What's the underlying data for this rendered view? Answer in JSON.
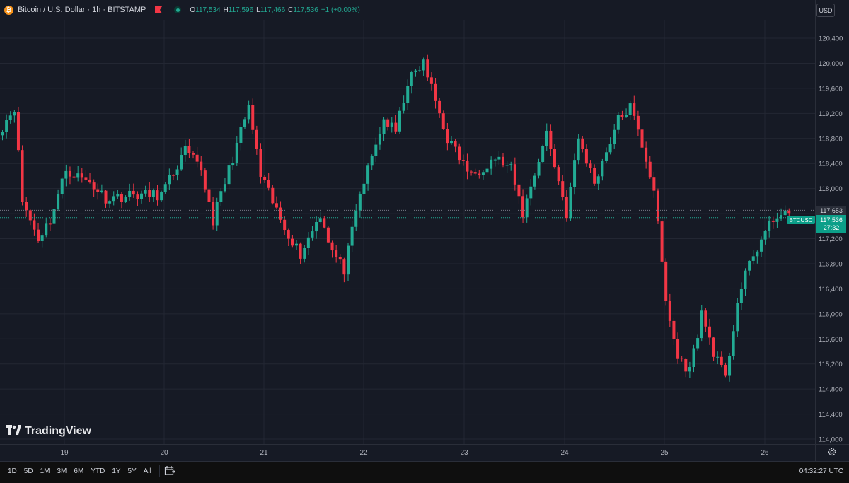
{
  "header": {
    "symbol_title": "Bitcoin / U.S. Dollar · 1h · BITSTAMP",
    "ohlc": [
      {
        "label": "O",
        "value": "117,534"
      },
      {
        "label": "H",
        "value": "117,596"
      },
      {
        "label": "L",
        "value": "117,466"
      },
      {
        "label": "C",
        "value": "117,536"
      },
      {
        "label": "",
        "value": "+1 (+0.00%)"
      }
    ]
  },
  "currency_label": "USD",
  "price_tags": {
    "prev_close": "117,653",
    "symbol": "BTCUSD",
    "last_price": "117,536",
    "countdown": "27:32"
  },
  "logo_text": "TradingView",
  "bottom_bar": {
    "ranges": [
      "1D",
      "5D",
      "1M",
      "3M",
      "6M",
      "YTD",
      "1Y",
      "5Y",
      "All"
    ],
    "clock": "04:32:27 UTC"
  },
  "colors": {
    "up": "#22ab94",
    "down": "#f23645",
    "background": "#161a25",
    "grid": "#232733"
  },
  "chart_data": {
    "type": "candlestick",
    "title": "Bitcoin / U.S. Dollar · 1h · BITSTAMP",
    "ylim": [
      114000,
      120600
    ],
    "y_ticks": [
      120400,
      120000,
      119600,
      119200,
      118800,
      118400,
      118000,
      117600,
      117200,
      116800,
      116400,
      116000,
      115600,
      115200,
      114800,
      114400,
      114000
    ],
    "y_tick_labels": [
      "120,400",
      "120,000",
      "119,600",
      "119,200",
      "118,800",
      "118,400",
      "118,000",
      "117,600",
      "117,200",
      "116,800",
      "116,400",
      "116,000",
      "115,600",
      "115,200",
      "114,800",
      "114,400",
      "114,000"
    ],
    "x_labels": [
      "19",
      "20",
      "21",
      "22",
      "23",
      "24",
      "25",
      "26"
    ],
    "current_price": 117536,
    "prev_close": 117653,
    "waypoints": [
      [
        0,
        119000
      ],
      [
        3,
        119300
      ],
      [
        5,
        117800
      ],
      [
        9,
        117200
      ],
      [
        12,
        117500
      ],
      [
        16,
        118300
      ],
      [
        22,
        118100
      ],
      [
        26,
        117850
      ],
      [
        33,
        117900
      ],
      [
        40,
        117900
      ],
      [
        46,
        118600
      ],
      [
        50,
        118300
      ],
      [
        53,
        117500
      ],
      [
        58,
        118500
      ],
      [
        62,
        119300
      ],
      [
        65,
        118200
      ],
      [
        70,
        117500
      ],
      [
        75,
        116950
      ],
      [
        80,
        117600
      ],
      [
        83,
        117000
      ],
      [
        86,
        116700
      ],
      [
        90,
        117900
      ],
      [
        96,
        119100
      ],
      [
        99,
        118900
      ],
      [
        102,
        119700
      ],
      [
        106,
        120000
      ],
      [
        108,
        119600
      ],
      [
        112,
        118800
      ],
      [
        118,
        118200
      ],
      [
        124,
        118500
      ],
      [
        128,
        118300
      ],
      [
        131,
        117600
      ],
      [
        137,
        118900
      ],
      [
        142,
        117600
      ],
      [
        145,
        118800
      ],
      [
        149,
        118100
      ],
      [
        155,
        119100
      ],
      [
        158,
        119300
      ],
      [
        161,
        118700
      ],
      [
        164,
        118000
      ],
      [
        167,
        116200
      ],
      [
        170,
        115300
      ],
      [
        173,
        115100
      ],
      [
        176,
        116000
      ],
      [
        179,
        115400
      ],
      [
        182,
        114950
      ],
      [
        185,
        116200
      ],
      [
        188,
        116800
      ],
      [
        192,
        117300
      ],
      [
        195,
        117600
      ],
      [
        198,
        117550
      ]
    ]
  }
}
